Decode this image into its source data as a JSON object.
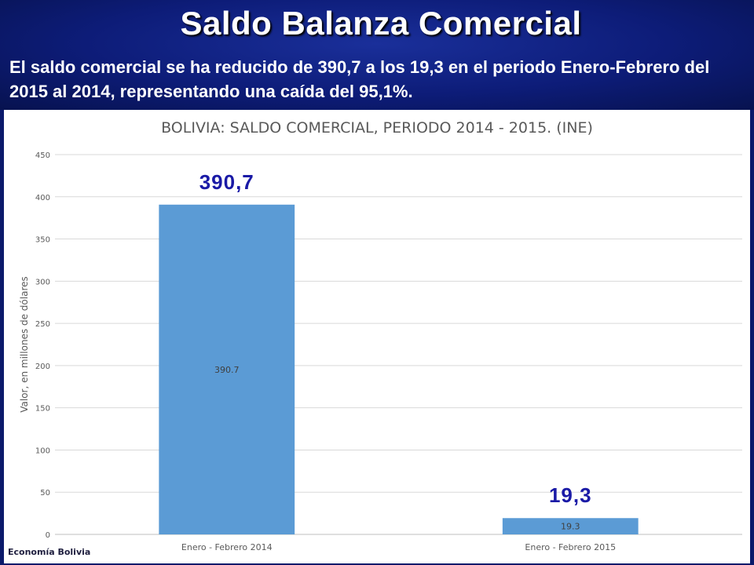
{
  "header": {
    "title": "Saldo Balanza Comercial",
    "subtitle": "El saldo comercial se ha reducido de 390,7 a los 19,3 en el periodo Enero-Febrero del 2015 al 2014, representando una caída del 95,1%."
  },
  "chart_data": {
    "type": "bar",
    "title": "BOLIVIA: SALDO COMERCIAL, PERIODO 2014 - 2015. (INE)",
    "xlabel": "",
    "ylabel": "Valor, en millones de dólares",
    "categories": [
      "Enero - Febrero 2014",
      "Enero - Febrero 2015"
    ],
    "values": [
      390.7,
      19.3
    ],
    "data_labels": [
      "390.7",
      "19.3"
    ],
    "callout_labels": [
      "390,7",
      "19,3"
    ],
    "ylim": [
      0,
      450
    ],
    "yticks": [
      0,
      50,
      100,
      150,
      200,
      250,
      300,
      350,
      400,
      450
    ],
    "grid": true,
    "bar_color": "#5b9bd5",
    "callout_color": "#1a1aa6"
  },
  "footer": {
    "source": "Economía Bolivia"
  }
}
